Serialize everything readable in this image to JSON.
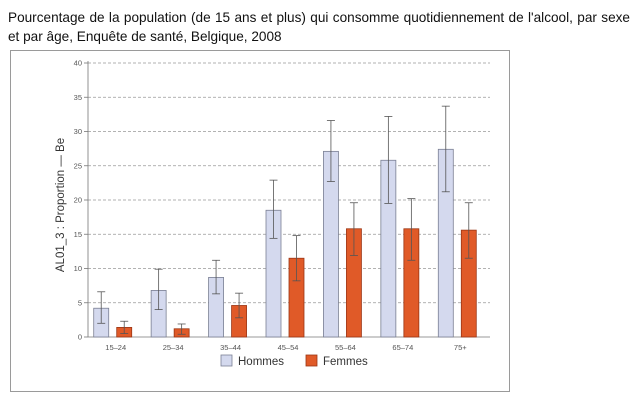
{
  "caption": "Pourcentage de la population (de 15 ans et plus) qui consomme quotidiennement de l'alcool, par sexe et par âge, Enquête de santé, Belgique, 2008",
  "chart_data": {
    "type": "bar",
    "title": "",
    "xlabel": "",
    "ylabel": "AL01_3 : Proportion — Be",
    "ylim": [
      0,
      40
    ],
    "yticks": [
      0,
      5,
      10,
      15,
      20,
      25,
      30,
      35,
      40
    ],
    "grid": true,
    "error_bars": true,
    "legend_position": "bottom",
    "categories": [
      "15–24",
      "25–34",
      "35–44",
      "45–54",
      "55–64",
      "65–74",
      "75+"
    ],
    "series": [
      {
        "name": "Hommes",
        "color": "#d4d9ee",
        "values": [
          4.2,
          6.8,
          8.7,
          18.5,
          27.1,
          25.8,
          27.4
        ],
        "err_low": [
          2.0,
          4.0,
          6.3,
          14.4,
          22.7,
          19.5,
          21.2
        ],
        "err_high": [
          6.6,
          9.9,
          11.2,
          22.9,
          31.6,
          32.2,
          33.7
        ]
      },
      {
        "name": "Femmes",
        "color": "#e05a28",
        "values": [
          1.4,
          1.2,
          4.6,
          11.5,
          15.8,
          15.8,
          15.6
        ],
        "err_low": [
          0.5,
          0.4,
          2.8,
          8.2,
          11.9,
          11.2,
          11.5
        ],
        "err_high": [
          2.3,
          1.9,
          6.4,
          14.8,
          19.6,
          20.2,
          19.6
        ]
      }
    ]
  }
}
